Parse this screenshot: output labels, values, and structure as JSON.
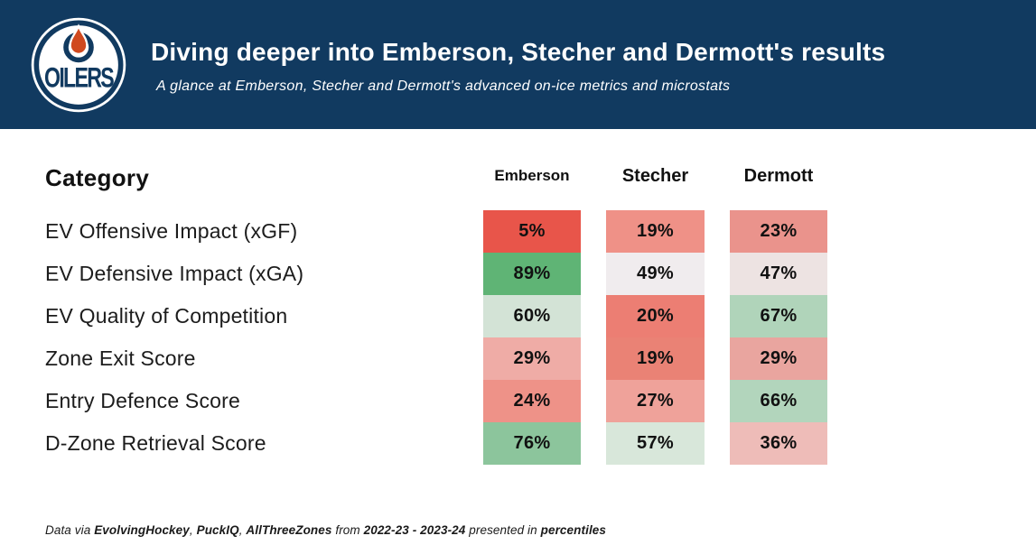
{
  "header": {
    "logo_text": "OILERS",
    "title": "Diving deeper into Emberson, Stecher and Dermott's results",
    "subtitle": "A glance at Emberson, Stecher and Dermott's advanced on-ice metrics and microstats"
  },
  "colors": {
    "band_navy": "#113a60",
    "logo_orange": "#d0491f",
    "low_percentile_red": "#e8554a",
    "high_percentile_green": "#5fb475"
  },
  "table": {
    "category_header": "Category",
    "players": [
      "Emberson",
      "Stecher",
      "Dermott"
    ],
    "rows": [
      {
        "label": "EV Offensive Impact (xGF)",
        "cells": [
          {
            "value": "5%",
            "bg": "#e8554a"
          },
          {
            "value": "19%",
            "bg": "#ef9187"
          },
          {
            "value": "23%",
            "bg": "#ea938c"
          }
        ]
      },
      {
        "label": "EV Defensive Impact (xGA)",
        "cells": [
          {
            "value": "89%",
            "bg": "#5fb475"
          },
          {
            "value": "49%",
            "bg": "#f0ecee"
          },
          {
            "value": "47%",
            "bg": "#ede3e2"
          }
        ]
      },
      {
        "label": "EV Quality of Competition",
        "cells": [
          {
            "value": "60%",
            "bg": "#d3e3d6"
          },
          {
            "value": "20%",
            "bg": "#ec7e73"
          },
          {
            "value": "67%",
            "bg": "#b0d4ba"
          }
        ]
      },
      {
        "label": "Zone Exit Score",
        "cells": [
          {
            "value": "29%",
            "bg": "#efaca6"
          },
          {
            "value": "19%",
            "bg": "#ea8275"
          },
          {
            "value": "29%",
            "bg": "#e9a59f"
          }
        ]
      },
      {
        "label": "Entry Defence Score",
        "cells": [
          {
            "value": "24%",
            "bg": "#ee9288"
          },
          {
            "value": "27%",
            "bg": "#efa29a"
          },
          {
            "value": "66%",
            "bg": "#b2d5bc"
          }
        ]
      },
      {
        "label": "D-Zone Retrieval Score",
        "cells": [
          {
            "value": "76%",
            "bg": "#8cc59c"
          },
          {
            "value": "57%",
            "bg": "#d8e7da"
          },
          {
            "value": "36%",
            "bg": "#eebcb8"
          }
        ]
      }
    ]
  },
  "footer": {
    "segments": [
      {
        "text": "Data via ",
        "bold": false
      },
      {
        "text": "EvolvingHockey",
        "bold": true
      },
      {
        "text": ", ",
        "bold": false
      },
      {
        "text": "PuckIQ",
        "bold": true
      },
      {
        "text": ", ",
        "bold": false
      },
      {
        "text": "AllThreeZones",
        "bold": true
      },
      {
        "text": " from ",
        "bold": false
      },
      {
        "text": "2022-23 - 2023-24",
        "bold": true
      },
      {
        "text": " presented in ",
        "bold": false
      },
      {
        "text": "percentiles",
        "bold": true
      }
    ]
  },
  "chart_data": {
    "type": "heatmap",
    "title": "Diving deeper into Emberson, Stecher and Dermott's results",
    "subtitle": "A glance at Emberson, Stecher and Dermott's advanced on-ice metrics and microstats",
    "columns": [
      "Emberson",
      "Stecher",
      "Dermott"
    ],
    "rows": [
      "EV Offensive Impact (xGF)",
      "EV Defensive Impact (xGA)",
      "EV Quality of Competition",
      "Zone Exit Score",
      "Entry Defence Score",
      "D-Zone Retrieval Score"
    ],
    "values_percent": [
      [
        5,
        19,
        23
      ],
      [
        89,
        49,
        47
      ],
      [
        60,
        20,
        67
      ],
      [
        29,
        19,
        29
      ],
      [
        24,
        27,
        66
      ],
      [
        76,
        57,
        36
      ]
    ],
    "units": "percentile",
    "colorscale": "red = low percentile, white = ~50th, green = high percentile",
    "source_note": "Data via EvolvingHockey, PuckIQ, AllThreeZones from 2022-23 - 2023-24 presented in percentiles"
  }
}
